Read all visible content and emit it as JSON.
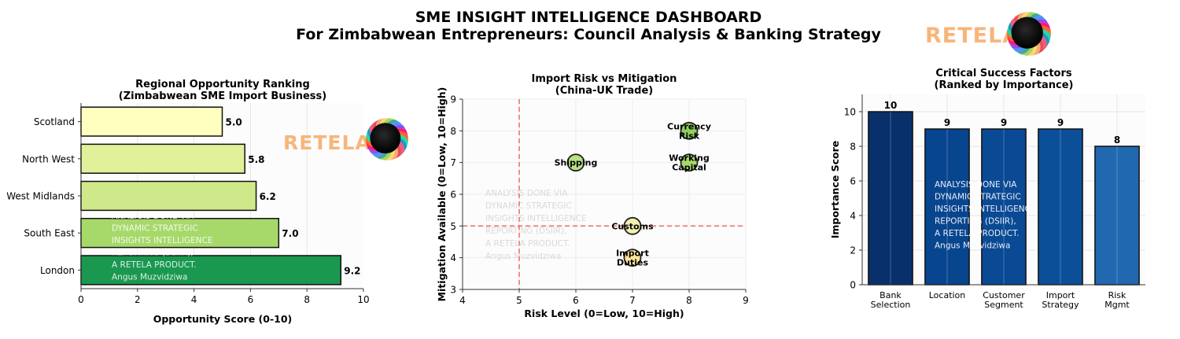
{
  "header": {
    "title": "SME INSIGHT INTELLIGENCE DASHBOARD",
    "subtitle": "For Zimbabwean Entrepreneurs: Council Analysis & Banking Strategy",
    "logo_text": "RETELA"
  },
  "colors": {
    "logo_orange": "#f7b57a",
    "dashed_red": "#f07070",
    "bar_border": "#111111"
  },
  "watermarks": {
    "left": [
      "ANALYSIS DONE VIA",
      "DYNAMIC STRATEGIC",
      "INSIGHTS INTELLIGENCE",
      "REPORTING (DSIIR),",
      "A RETELA PRODUCT.",
      "Angus Muzvidziwa"
    ],
    "middle": [
      "ANALYSIS DONE VIA",
      "DYNAMIC STRATEGIC",
      "INSIGHTS INTELLIGENCE",
      "REPORTING (DSIIR),",
      "A RETELA PRODUCT.",
      "Angus Muzvidziwa"
    ],
    "right": [
      "ANALYSIS DONE VIA",
      "DYNAMIC STRATEGIC",
      "INSIGHTS INTELLIGENCE",
      "REPORTING (DSIIR),",
      "A RETELA PRODUCT.",
      "Angus Muzvidziwa"
    ]
  },
  "chart_data": [
    {
      "type": "bar",
      "orientation": "horizontal",
      "title": [
        "Regional Opportunity Ranking",
        "(Zimbabwean SME Import Business)"
      ],
      "xlabel": "Opportunity Score (0-10)",
      "ylabel": "",
      "xlim": [
        0,
        10
      ],
      "xticks": [
        0,
        2,
        4,
        6,
        8,
        10
      ],
      "categories": [
        "London",
        "South East",
        "West Midlands",
        "North West",
        "Scotland"
      ],
      "values": [
        9.2,
        7.0,
        6.2,
        5.8,
        5.0
      ],
      "value_labels": [
        "9.2",
        "7.0",
        "6.2",
        "5.8",
        "5.0"
      ],
      "colors": [
        "#1a9850",
        "#a6d96a",
        "#cfe98a",
        "#e0f19a",
        "#ffffbf"
      ]
    },
    {
      "type": "scatter",
      "title": [
        "Import Risk vs Mitigation",
        "(China-UK Trade)"
      ],
      "xlabel": "Risk Level (0=Low, 10=High)",
      "ylabel": "Mitigation Available (0=Low, 10=High)",
      "xlim": [
        4,
        9
      ],
      "ylim": [
        3,
        9
      ],
      "xticks": [
        4,
        5,
        6,
        7,
        8,
        9
      ],
      "yticks": [
        3,
        4,
        5,
        6,
        7,
        8,
        9
      ],
      "ref_x": 5,
      "ref_y": 5,
      "points": [
        {
          "label": [
            "Currency",
            "Risk"
          ],
          "x": 8,
          "y": 8,
          "color": "#91cf60"
        },
        {
          "label": [
            "Working",
            "Capital"
          ],
          "x": 8,
          "y": 7,
          "color": "#a6d96a"
        },
        {
          "label": [
            "Shipping"
          ],
          "x": 6,
          "y": 7,
          "color": "#b8e186"
        },
        {
          "label": [
            "Customs"
          ],
          "x": 7,
          "y": 5,
          "color": "#f4eeb0"
        },
        {
          "label": [
            "Import",
            "Duties"
          ],
          "x": 7,
          "y": 4,
          "color": "#fde59b"
        }
      ]
    },
    {
      "type": "bar",
      "orientation": "vertical",
      "title": [
        "Critical Success Factors",
        "(Ranked by Importance)"
      ],
      "xlabel": "",
      "ylabel": "Importance Score",
      "ylim": [
        0,
        11
      ],
      "yticks": [
        0,
        2,
        4,
        6,
        8,
        10
      ],
      "categories": [
        [
          "Bank",
          "Selection"
        ],
        [
          "Location"
        ],
        [
          "Customer",
          "Segment"
        ],
        [
          "Import",
          "Strategy"
        ],
        [
          "Risk",
          "Mgmt"
        ]
      ],
      "values": [
        10,
        9,
        9,
        9,
        8
      ],
      "value_labels": [
        "10",
        "9",
        "9",
        "9",
        "8"
      ],
      "colors": [
        "#08306b",
        "#08458f",
        "#0a4a94",
        "#0c4f99",
        "#2068b0"
      ]
    }
  ]
}
